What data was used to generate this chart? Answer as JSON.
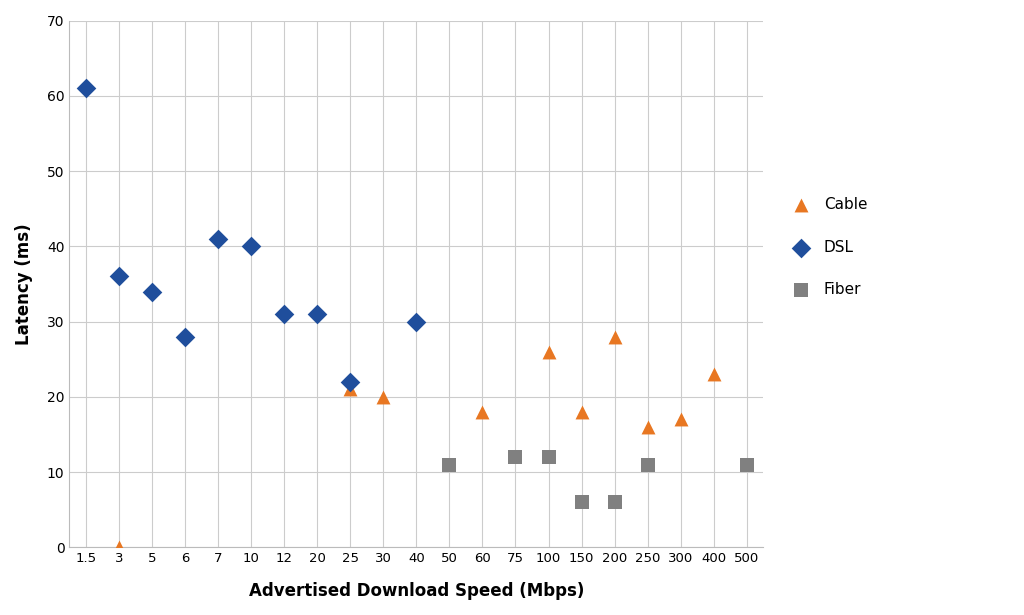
{
  "cable": {
    "x": [
      3,
      25,
      30,
      60,
      100,
      150,
      200,
      250,
      300,
      400
    ],
    "y": [
      0,
      21,
      20,
      18,
      26,
      18,
      28,
      16,
      17,
      23
    ],
    "color": "#E87722",
    "marker": "^",
    "label": "Cable",
    "markersize": 10
  },
  "dsl": {
    "x": [
      1.5,
      3,
      5,
      6,
      7,
      10,
      12,
      20,
      25,
      40
    ],
    "y": [
      61,
      36,
      34,
      28,
      41,
      40,
      31,
      31,
      22,
      30
    ],
    "color": "#1F4E9C",
    "marker": "D",
    "label": "DSL",
    "markersize": 10
  },
  "fiber": {
    "x": [
      50,
      75,
      100,
      150,
      200,
      250,
      500
    ],
    "y": [
      11,
      12,
      12,
      6,
      6,
      11,
      11
    ],
    "color": "#808080",
    "marker": "s",
    "label": "Fiber",
    "markersize": 10
  },
  "xtick_labels": [
    "1.5",
    "3",
    "5",
    "6",
    "7",
    "10",
    "12",
    "20",
    "25",
    "30",
    "40",
    "50",
    "60",
    "75",
    "100",
    "150",
    "200",
    "250",
    "300",
    "400",
    "500"
  ],
  "xtick_values": [
    1.5,
    3,
    5,
    6,
    7,
    10,
    12,
    20,
    25,
    30,
    40,
    50,
    60,
    75,
    100,
    150,
    200,
    250,
    300,
    400,
    500
  ],
  "ylabel": "Latency (ms)",
  "xlabel": "Advertised Download Speed (Mbps)",
  "ylim": [
    0,
    70
  ],
  "yticks": [
    0,
    10,
    20,
    30,
    40,
    50,
    60,
    70
  ],
  "background_color": "#FFFFFF",
  "grid_color": "#CCCCCC"
}
